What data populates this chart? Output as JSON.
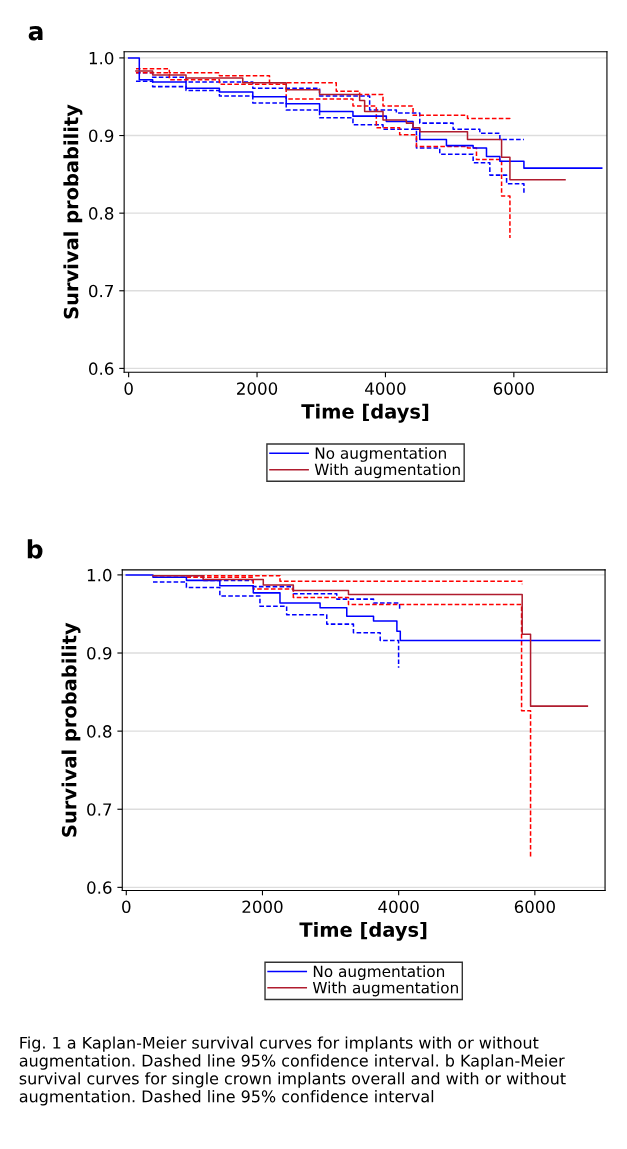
{
  "chart_data": [
    {
      "type": "step",
      "title": "a",
      "xlabel": "Time [days]",
      "ylabel": "Survival probability",
      "xlim": [
        -70,
        7450
      ],
      "ylim": [
        0.595,
        1.008
      ],
      "xticks": [
        0,
        2000,
        4000,
        6000
      ],
      "yticks": [
        {
          "value": 0.6,
          "label": "0.6"
        },
        {
          "value": 0.7,
          "label": "0.7"
        },
        {
          "value": 0.8,
          "label": "0.8"
        },
        {
          "value": 0.9,
          "label": "0.9"
        },
        {
          "value": 1.0,
          "label": "1.0"
        }
      ],
      "grid": "y",
      "legend": "bottom",
      "series": [
        {
          "name": "No augmentation",
          "color": "#0000ff",
          "line_style": "solid",
          "x": [
            0,
            166,
            374,
            894,
            1414,
            1934,
            2454,
            2974,
            3494,
            4014,
            4430,
            4535,
            4950,
            5366,
            5574,
            5782,
            6157,
            7369
          ],
          "values": [
            1.0,
            0.972,
            0.969,
            0.961,
            0.956,
            0.95,
            0.941,
            0.931,
            0.925,
            0.918,
            0.908,
            0.895,
            0.887,
            0.884,
            0.873,
            0.867,
            0.858,
            0.858
          ]
        },
        {
          "name": "With augmentation",
          "color": "#b01c2e",
          "line_style": "solid",
          "x": [
            114,
            374,
            894,
            1778,
            2454,
            2974,
            3598,
            3676,
            3962,
            4326,
            4430,
            4535,
            5278,
            5809,
            5939,
            6797
          ],
          "values": [
            0.983,
            0.978,
            0.974,
            0.968,
            0.959,
            0.953,
            0.945,
            0.931,
            0.92,
            0.916,
            0.91,
            0.905,
            0.895,
            0.872,
            0.843,
            0.843
          ]
        },
        {
          "color": "#0000ff",
          "line_style": "dashed",
          "x": [
            114,
            374,
            894,
            1414,
            1934,
            2454,
            2974,
            3494,
            3962,
            4483,
            4846,
            5366,
            5626,
            5887,
            6157
          ],
          "values": [
            0.97,
            0.963,
            0.958,
            0.951,
            0.942,
            0.933,
            0.923,
            0.914,
            0.908,
            0.884,
            0.876,
            0.865,
            0.849,
            0.838,
            0.826
          ]
        },
        {
          "color": "#0000ff",
          "line_style": "dashed",
          "x": [
            114,
            374,
            894,
            1934,
            2974,
            3754,
            4170,
            4535,
            5054,
            5470,
            5782,
            6157
          ],
          "values": [
            0.981,
            0.975,
            0.969,
            0.961,
            0.951,
            0.933,
            0.929,
            0.916,
            0.908,
            0.903,
            0.895,
            0.895
          ]
        },
        {
          "color": "#ff0000",
          "line_style": "dashed",
          "x": [
            114,
            634,
            1414,
            2194,
            3234,
            3598,
            3962,
            4430,
            5278,
            5939
          ],
          "values": [
            0.986,
            0.981,
            0.977,
            0.968,
            0.957,
            0.953,
            0.938,
            0.926,
            0.922,
            0.92
          ]
        },
        {
          "color": "#ff0000",
          "line_style": "dashed",
          "x": [
            114,
            634,
            1414,
            2454,
            3494,
            3858,
            4222,
            4483,
            5278,
            5418,
            5809,
            5939
          ],
          "values": [
            0.981,
            0.972,
            0.966,
            0.947,
            0.938,
            0.91,
            0.901,
            0.886,
            0.884,
            0.869,
            0.822,
            0.768
          ]
        }
      ]
    },
    {
      "type": "step",
      "title": "b",
      "xlabel": "Time [days]",
      "ylabel": "Survival probability",
      "xlim": [
        -59,
        7031
      ],
      "ylim": [
        0.596,
        1.0064
      ],
      "xticks": [
        0,
        2000,
        4000,
        6000
      ],
      "yticks": [
        {
          "value": 0.6,
          "label": "0.6"
        },
        {
          "value": 0.7,
          "label": "0.7"
        },
        {
          "value": 0.8,
          "label": "0.8"
        },
        {
          "value": 0.9,
          "label": "0.9"
        },
        {
          "value": 1.0,
          "label": "1.0"
        }
      ],
      "grid": "y",
      "legend": "bottom",
      "annotations": [
        "Fig. 1 a Kaplan-Meier survival curves for implants with or without augmentation. Dashed line 95% confidence interval. b Kaplan-Meier survival curves for single crown implants overall and with or without augmentation. Dashed line 95% confidence interval"
      ],
      "series": [
        {
          "name": "No augmentation",
          "color": "#0000ff",
          "line_style": "solid",
          "x": [
            0,
            392,
            883,
            1374,
            1865,
            2257,
            2846,
            3238,
            3631,
            3974,
            4024,
            6953
          ],
          "values": [
            1.0,
            0.997,
            0.993,
            0.986,
            0.977,
            0.964,
            0.958,
            0.947,
            0.941,
            0.928,
            0.916,
            0.916
          ]
        },
        {
          "name": "With augmentation",
          "color": "#b01c2e",
          "line_style": "solid",
          "x": [
            392,
            1129,
            2012,
            2453,
            3263,
            5814,
            5937,
            6771
          ],
          "values": [
            0.999,
            0.994,
            0.987,
            0.98,
            0.975,
            0.924,
            0.832,
            0.832
          ]
        },
        {
          "color": "#0000ff",
          "line_style": "dashed",
          "x": [
            392,
            883,
            1374,
            1963,
            2355,
            2944,
            3336,
            3729,
            3999
          ],
          "values": [
            0.991,
            0.984,
            0.973,
            0.96,
            0.949,
            0.937,
            0.926,
            0.916,
            0.881
          ]
        },
        {
          "color": "#0000ff",
          "line_style": "dashed",
          "x": [
            392,
            1129,
            1865,
            2453,
            3091,
            3631,
            4014
          ],
          "values": [
            0.999,
            0.993,
            0.985,
            0.976,
            0.969,
            0.964,
            0.954
          ]
        },
        {
          "color": "#ff0000",
          "line_style": "dashed",
          "x": [
            883,
            2257,
            5814
          ],
          "values": [
            0.999,
            0.992,
            0.988
          ]
        },
        {
          "color": "#ff0000",
          "line_style": "dashed",
          "x": [
            883,
            1865,
            2453,
            3263,
            5805,
            5937
          ],
          "values": [
            0.997,
            0.982,
            0.971,
            0.962,
            0.826,
            0.639
          ]
        }
      ]
    }
  ]
}
